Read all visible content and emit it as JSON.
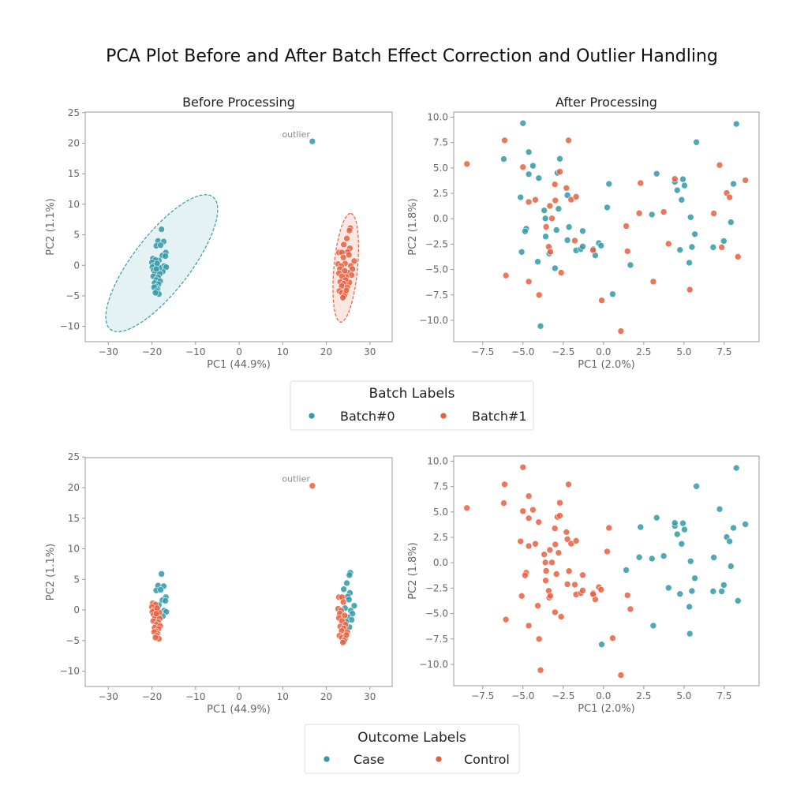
{
  "title": "PCA Plot Before and After Batch Effect Correction and Outlier Handling",
  "colors": {
    "teal": "#3399a8",
    "orange": "#e5603f"
  },
  "legends": [
    {
      "title": "Batch Labels",
      "entries": [
        {
          "label": "Batch#0",
          "color": "#3399a8"
        },
        {
          "label": "Batch#1",
          "color": "#e5603f"
        }
      ]
    },
    {
      "title": "Outcome Labels",
      "entries": [
        {
          "label": "Case",
          "color": "#3399a8"
        },
        {
          "label": "Control",
          "color": "#e5603f"
        }
      ]
    }
  ],
  "chart_data": [
    {
      "type": "scatter",
      "title": "Before Processing",
      "xlabel": "PC1 (44.9%)",
      "ylabel": "PC2 (1.1%)",
      "color_by": "batch",
      "xlim": [
        -35.3,
        35.1
      ],
      "ylim": [
        -12.5,
        25.1
      ],
      "xticks": [
        -30,
        -20,
        -10,
        0,
        10,
        20,
        30
      ],
      "yticks": [
        -10,
        -5,
        0,
        5,
        10,
        15,
        20,
        25
      ],
      "confidence_ellipses": true,
      "annotation": "outlier",
      "dataset": "before"
    },
    {
      "type": "scatter",
      "title": "After Processing",
      "xlabel": "PC1 (2.0%)",
      "ylabel": "PC2 (1.8%)",
      "color_by": "batch",
      "xlim": [
        -9.3,
        9.66
      ],
      "ylim": [
        -12.1,
        10.5
      ],
      "xticks": [
        -7.5,
        -5.0,
        -2.5,
        0.0,
        2.5,
        5.0,
        7.5
      ],
      "yticks": [
        -10.0,
        -7.5,
        -5.0,
        -2.5,
        0.0,
        2.5,
        5.0,
        7.5,
        10.0
      ],
      "dataset": "after"
    },
    {
      "type": "scatter",
      "title": "",
      "xlabel": "PC1 (44.9%)",
      "ylabel": "PC2 (1.1%)",
      "color_by": "outcome",
      "xlim": [
        -35.3,
        35.1
      ],
      "ylim": [
        -12.5,
        24.9
      ],
      "xticks": [
        -30,
        -20,
        -10,
        0,
        10,
        20,
        30
      ],
      "yticks": [
        -10,
        -5,
        0,
        5,
        10,
        15,
        20,
        25
      ],
      "annotation": "outlier",
      "dataset": "before"
    },
    {
      "type": "scatter",
      "title": "",
      "xlabel": "PC1 (2.0%)",
      "ylabel": "PC2 (1.8%)",
      "color_by": "outcome",
      "xlim": [
        -9.3,
        9.66
      ],
      "ylim": [
        -12.1,
        10.5
      ],
      "xticks": [
        -7.5,
        -5.0,
        -2.5,
        0.0,
        2.5,
        5.0,
        7.5
      ],
      "yticks": [
        -10.0,
        -7.5,
        -5.0,
        -2.5,
        0.0,
        2.5,
        5.0,
        7.5,
        10.0
      ],
      "dataset": "after"
    }
  ],
  "points_fields": [
    "x",
    "y",
    "batch",
    "outcome"
  ],
  "before_points": [
    [
      -17.8,
      5.9,
      0,
      "Case"
    ],
    [
      -18.6,
      4.0,
      0,
      "Case"
    ],
    [
      -17.3,
      3.9,
      0,
      "Case"
    ],
    [
      -19.0,
      3.2,
      0,
      "Case"
    ],
    [
      -18.0,
      3.3,
      0,
      "Case"
    ],
    [
      -16.8,
      2.1,
      0,
      "Case"
    ],
    [
      -17.6,
      1.6,
      0,
      "Case"
    ],
    [
      -16.9,
      1.5,
      0,
      "Case"
    ],
    [
      -18.4,
      0.8,
      0,
      "Case"
    ],
    [
      -17.2,
      -0.1,
      0,
      "Case"
    ],
    [
      -16.7,
      -0.3,
      0,
      "Case"
    ],
    [
      -17.5,
      -1.0,
      0,
      "Case"
    ],
    [
      -19.8,
      1.1,
      0,
      "Control"
    ],
    [
      -19.2,
      0.9,
      0,
      "Control"
    ],
    [
      -20.0,
      0.5,
      0,
      "Control"
    ],
    [
      -19.5,
      0.0,
      0,
      "Control"
    ],
    [
      -19.9,
      -0.3,
      0,
      "Control"
    ],
    [
      -18.7,
      -0.2,
      0,
      "Control"
    ],
    [
      -18.3,
      -0.4,
      0,
      "Control"
    ],
    [
      -19.6,
      -0.8,
      0,
      "Control"
    ],
    [
      -18.9,
      -1.0,
      0,
      "Control"
    ],
    [
      -19.3,
      -1.3,
      0,
      "Control"
    ],
    [
      -18.2,
      -1.4,
      0,
      "Control"
    ],
    [
      -19.7,
      -1.8,
      0,
      "Control"
    ],
    [
      -18.6,
      -2.0,
      0,
      "Control"
    ],
    [
      -19.0,
      -2.4,
      0,
      "Control"
    ],
    [
      -18.1,
      -2.6,
      0,
      "Control"
    ],
    [
      -19.4,
      -2.9,
      0,
      "Control"
    ],
    [
      -18.5,
      -3.1,
      0,
      "Control"
    ],
    [
      -19.1,
      -3.5,
      0,
      "Control"
    ],
    [
      -18.7,
      -3.9,
      0,
      "Control"
    ],
    [
      -19.5,
      -3.6,
      0,
      "Control"
    ],
    [
      -18.9,
      -4.2,
      0,
      "Control"
    ],
    [
      -18.4,
      -4.7,
      0,
      "Control"
    ],
    [
      -19.2,
      -4.5,
      0,
      "Control"
    ],
    [
      -18.8,
      0.3,
      0,
      "Control"
    ],
    [
      -19.0,
      -0.6,
      0,
      "Control"
    ],
    [
      16.8,
      20.3,
      0,
      "Control"
    ],
    [
      25.5,
      6.1,
      1,
      "Case"
    ],
    [
      25.3,
      5.7,
      1,
      "Case"
    ],
    [
      24.7,
      4.4,
      1,
      "Case"
    ],
    [
      24.0,
      3.4,
      1,
      "Case"
    ],
    [
      25.4,
      2.8,
      1,
      "Case"
    ],
    [
      24.9,
      2.2,
      1,
      "Case"
    ],
    [
      25.2,
      1.7,
      1,
      "Case"
    ],
    [
      26.4,
      0.7,
      1,
      "Case"
    ],
    [
      25.6,
      -0.1,
      1,
      "Case"
    ],
    [
      24.3,
      0.3,
      1,
      "Case"
    ],
    [
      26.0,
      -0.6,
      1,
      "Case"
    ],
    [
      25.0,
      -1.2,
      1,
      "Case"
    ],
    [
      25.8,
      -1.6,
      1,
      "Case"
    ],
    [
      24.6,
      -1.9,
      1,
      "Case"
    ],
    [
      25.3,
      -2.8,
      1,
      "Case"
    ],
    [
      22.9,
      2.1,
      1,
      "Control"
    ],
    [
      23.6,
      2.1,
      1,
      "Control"
    ],
    [
      23.9,
      1.3,
      1,
      "Control"
    ],
    [
      22.7,
      0.2,
      1,
      "Control"
    ],
    [
      23.4,
      -0.1,
      1,
      "Control"
    ],
    [
      23.1,
      -0.6,
      1,
      "Control"
    ],
    [
      24.2,
      -0.9,
      1,
      "Control"
    ],
    [
      22.9,
      -1.3,
      1,
      "Control"
    ],
    [
      23.6,
      -1.8,
      1,
      "Control"
    ],
    [
      24.4,
      -2.4,
      1,
      "Control"
    ],
    [
      23.2,
      -2.7,
      1,
      "Control"
    ],
    [
      24.0,
      -3.0,
      1,
      "Control"
    ],
    [
      23.5,
      -3.4,
      1,
      "Control"
    ],
    [
      24.8,
      -3.6,
      1,
      "Control"
    ],
    [
      23.0,
      -4.2,
      1,
      "Control"
    ],
    [
      23.6,
      -4.5,
      1,
      "Control"
    ],
    [
      24.3,
      -4.7,
      1,
      "Control"
    ],
    [
      24.1,
      -5.0,
      1,
      "Control"
    ],
    [
      23.8,
      -5.3,
      1,
      "Control"
    ],
    [
      24.6,
      -4.1,
      1,
      "Control"
    ]
  ],
  "outlier_point": [
    16.8,
    20.3
  ],
  "after_points": [
    [
      -5.0,
      9.4,
      0,
      "Control"
    ],
    [
      -6.19,
      5.87,
      0,
      "Control"
    ],
    [
      -4.64,
      6.56,
      0,
      "Control"
    ],
    [
      -4.38,
      5.21,
      0,
      "Control"
    ],
    [
      -4.64,
      4.38,
      0,
      "Control"
    ],
    [
      -4.02,
      4.0,
      0,
      "Control"
    ],
    [
      -2.71,
      5.9,
      0,
      "Control"
    ],
    [
      -2.86,
      4.51,
      0,
      "Control"
    ],
    [
      -5.15,
      2.11,
      0,
      "Control"
    ],
    [
      -2.24,
      2.32,
      0,
      "Control"
    ],
    [
      0.34,
      3.43,
      0,
      "Control"
    ],
    [
      -3.68,
      0.82,
      0,
      "Control"
    ],
    [
      -3.61,
      0.03,
      0,
      "Control"
    ],
    [
      -2.79,
      0.98,
      0,
      "Control"
    ],
    [
      -4.8,
      -0.98,
      0,
      "Control"
    ],
    [
      -4.87,
      -1.24,
      0,
      "Control"
    ],
    [
      -3.59,
      -1.75,
      0,
      "Control"
    ],
    [
      -2.92,
      -1.11,
      0,
      "Control"
    ],
    [
      -2.14,
      -0.82,
      0,
      "Control"
    ],
    [
      -1.29,
      -1.21,
      0,
      "Control"
    ],
    [
      -2.24,
      -2.11,
      0,
      "Control"
    ],
    [
      -1.7,
      -3.12,
      0,
      "Control"
    ],
    [
      -1.41,
      -2.99,
      0,
      "Control"
    ],
    [
      -1.29,
      -2.73,
      0,
      "Control"
    ],
    [
      -0.64,
      -2.99,
      0,
      "Control"
    ],
    [
      -0.29,
      -2.4,
      0,
      "Control"
    ],
    [
      -0.15,
      -2.65,
      0,
      "Control"
    ],
    [
      -0.51,
      -3.61,
      0,
      "Control"
    ],
    [
      -5.08,
      -3.27,
      0,
      "Control"
    ],
    [
      -4.08,
      -4.23,
      0,
      "Control"
    ],
    [
      -3.37,
      -3.43,
      0,
      "Control"
    ],
    [
      -3.01,
      -4.87,
      0,
      "Control"
    ],
    [
      -3.91,
      -10.57,
      0,
      "Control"
    ],
    [
      0.23,
      1.11,
      0,
      "Control"
    ],
    [
      0.57,
      -7.42,
      0,
      "Control"
    ],
    [
      1.67,
      -4.56,
      0,
      "Control"
    ],
    [
      3.01,
      0.41,
      0,
      "Case"
    ],
    [
      3.3,
      4.43,
      0,
      "Case"
    ],
    [
      4.43,
      3.63,
      0,
      "Case"
    ],
    [
      4.58,
      2.81,
      0,
      "Case"
    ],
    [
      4.85,
      1.86,
      0,
      "Case"
    ],
    [
      4.93,
      3.89,
      0,
      "Case"
    ],
    [
      5.03,
      3.27,
      0,
      "Case"
    ],
    [
      5.41,
      0.15,
      0,
      "Case"
    ],
    [
      5.67,
      -1.52,
      0,
      "Case"
    ],
    [
      5.49,
      -2.78,
      0,
      "Case"
    ],
    [
      4.75,
      -3.07,
      0,
      "Case"
    ],
    [
      5.33,
      -4.33,
      0,
      "Case"
    ],
    [
      5.77,
      7.53,
      0,
      "Case"
    ],
    [
      8.25,
      9.33,
      0,
      "Case"
    ],
    [
      8.07,
      3.43,
      0,
      "Case"
    ],
    [
      7.91,
      -0.34,
      0,
      "Case"
    ],
    [
      7.47,
      -2.19,
      0,
      "Case"
    ],
    [
      6.81,
      -2.81,
      0,
      "Case"
    ],
    [
      -8.48,
      5.39,
      1,
      "Control"
    ],
    [
      -6.14,
      7.71,
      1,
      "Control"
    ],
    [
      -2.17,
      7.71,
      1,
      "Control"
    ],
    [
      -5.0,
      5.08,
      1,
      "Control"
    ],
    [
      -2.71,
      4.64,
      1,
      "Control"
    ],
    [
      -3.02,
      3.38,
      1,
      "Control"
    ],
    [
      -2.3,
      3.02,
      1,
      "Control"
    ],
    [
      -4.64,
      1.65,
      1,
      "Control"
    ],
    [
      -4.23,
      1.86,
      1,
      "Control"
    ],
    [
      -3.33,
      1.26,
      1,
      "Control"
    ],
    [
      -2.99,
      1.8,
      1,
      "Control"
    ],
    [
      -2.01,
      1.88,
      1,
      "Control"
    ],
    [
      -1.7,
      2.16,
      1,
      "Control"
    ],
    [
      -3.2,
      0.03,
      1,
      "Control"
    ],
    [
      -3.56,
      -0.8,
      1,
      "Control"
    ],
    [
      -1.78,
      -2.16,
      1,
      "Control"
    ],
    [
      -3.4,
      -2.76,
      1,
      "Control"
    ],
    [
      -3.3,
      -3.25,
      1,
      "Control"
    ],
    [
      -0.65,
      -3.09,
      1,
      "Control"
    ],
    [
      -6.06,
      -5.59,
      1,
      "Control"
    ],
    [
      -2.63,
      -5.31,
      1,
      "Control"
    ],
    [
      -4.64,
      -6.19,
      1,
      "Control"
    ],
    [
      -4.0,
      -7.5,
      1,
      "Control"
    ],
    [
      -0.11,
      -8.04,
      1,
      "Case"
    ],
    [
      1.08,
      -11.06,
      1,
      "Control"
    ],
    [
      1.41,
      -0.72,
      1,
      "Case"
    ],
    [
      1.49,
      -3.2,
      1,
      "Control"
    ],
    [
      2.3,
      3.51,
      1,
      "Case"
    ],
    [
      2.22,
      0.54,
      1,
      "Case"
    ],
    [
      3.74,
      0.67,
      1,
      "Case"
    ],
    [
      3.09,
      -6.19,
      1,
      "Case"
    ],
    [
      4.04,
      -2.47,
      1,
      "Case"
    ],
    [
      4.43,
      3.92,
      1,
      "Case"
    ],
    [
      5.36,
      -6.98,
      1,
      "Case"
    ],
    [
      7.21,
      5.28,
      1,
      "Case"
    ],
    [
      6.85,
      0.52,
      1,
      "Case"
    ],
    [
      7.65,
      2.53,
      1,
      "Case"
    ],
    [
      7.83,
      2.11,
      1,
      "Case"
    ],
    [
      8.81,
      3.79,
      1,
      "Case"
    ],
    [
      7.34,
      -2.81,
      1,
      "Case"
    ],
    [
      8.35,
      -3.74,
      1,
      "Case"
    ]
  ]
}
